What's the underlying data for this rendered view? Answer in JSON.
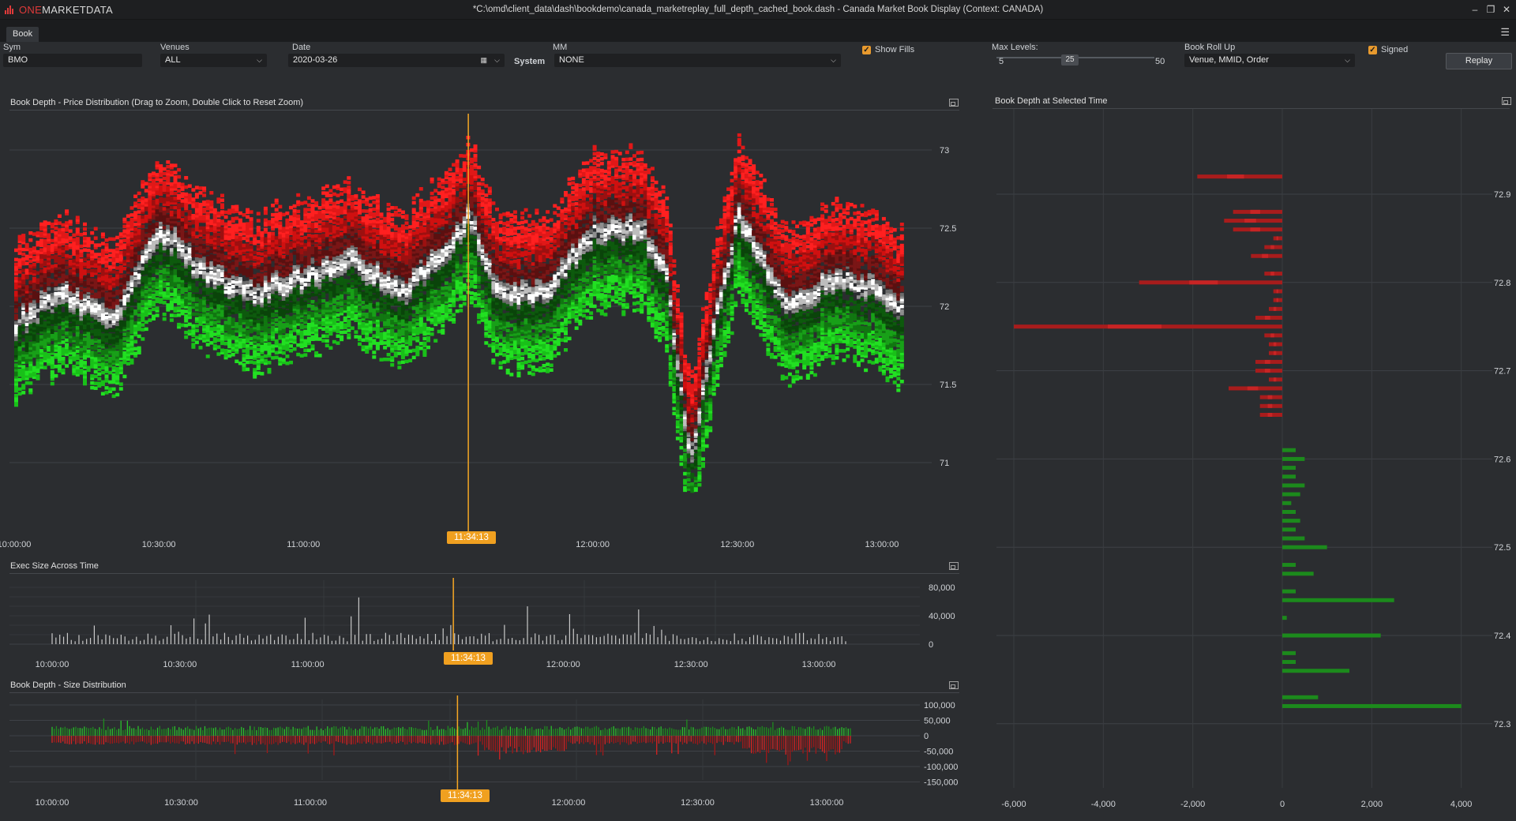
{
  "app": {
    "logo_one": "ONE",
    "logo_rest": "MARKETDATA",
    "window_title": "*C:\\omd\\client_data\\dash\\bookdemo\\canada_marketreplay_full_depth_cached_book.dash - Canada Market Book Display (Context: CANADA)",
    "tab": "Book"
  },
  "controls": {
    "sym_label": "Sym",
    "sym_value": "BMO",
    "venues_label": "Venues",
    "venues_value": "ALL",
    "date_label": "Date",
    "date_value": "2020-03-26",
    "mm_label": "MM",
    "system_label": "System",
    "mm_value": "NONE",
    "show_fills_label": "Show Fills",
    "max_levels_label": "Max Levels:",
    "max_levels_min": "5",
    "max_levels_value": "25",
    "max_levels_max": "50",
    "rollup_label": "Book Roll Up",
    "rollup_value": "Venue, MMID, Order",
    "signed_label": "Signed",
    "replay_label": "Replay"
  },
  "colors": {
    "ask": "#ff2020",
    "bid": "#22d422",
    "cursor": "#f5a623",
    "panel_bg": "#2b2d30"
  },
  "selected_time": "11:34:13",
  "panels": {
    "price_title": "Book Depth - Price Distribution (Drag to Zoom, Double Click to Reset Zoom)",
    "exec_title": "Exec Size Across Time",
    "size_title": "Book Depth - Size Distribution",
    "depth_title": "Book Depth at Selected Time"
  },
  "chart_data": [
    {
      "type": "heatmap",
      "title": "Book Depth - Price Distribution (Drag to Zoom, Double Click to Reset Zoom)",
      "x_ticks": [
        "10:00:00",
        "10:30:00",
        "11:00:00",
        "11:30:00",
        "12:00:00",
        "12:30:00",
        "13:00:00"
      ],
      "y_ticks": [
        "73",
        "72.5",
        "72",
        "71.5",
        "71"
      ],
      "ylim": [
        70.6,
        73.25
      ],
      "mid_price": {
        "x": [
          "10:00",
          "10:10",
          "10:20",
          "10:30",
          "10:40",
          "10:50",
          "11:00",
          "11:10",
          "11:20",
          "11:30",
          "11:34",
          "11:40",
          "11:50",
          "12:00",
          "12:10",
          "12:15",
          "12:20",
          "12:25",
          "12:30",
          "12:40",
          "12:50",
          "13:00",
          "13:10"
        ],
        "y": [
          71.9,
          72.1,
          71.9,
          72.5,
          72.2,
          72.1,
          72.2,
          72.3,
          72.1,
          72.4,
          72.6,
          72.1,
          72.1,
          72.5,
          72.5,
          72.2,
          71.0,
          71.9,
          72.6,
          72.0,
          72.2,
          72.1,
          71.8
        ]
      }
    },
    {
      "type": "bar",
      "title": "Exec Size Across Time",
      "x_ticks": [
        "10:00:00",
        "10:30:00",
        "11:00:00",
        "11:30:00",
        "12:00:00",
        "12:30:00",
        "13:00:00"
      ],
      "y_ticks": [
        "80,000",
        "40,000",
        "0"
      ],
      "ylim": [
        0,
        80000
      ]
    },
    {
      "type": "area",
      "title": "Book Depth - Size Distribution",
      "x_ticks": [
        "10:00:00",
        "10:30:00",
        "11:00:00",
        "11:30:00",
        "12:00:00",
        "12:30:00",
        "13:00:00"
      ],
      "y_ticks": [
        "100,000",
        "50,000",
        "0",
        "-50,000",
        "-100,000",
        "-150,000"
      ],
      "ylim": [
        -150000,
        100000
      ]
    },
    {
      "type": "bar",
      "title": "Book Depth at Selected Time",
      "x_ticks": [
        "-6,000",
        "-4,000",
        "-2,000",
        "0",
        "2,000",
        "4,000"
      ],
      "y_ticks": [
        "72.9",
        "72.8",
        "72.7",
        "72.6",
        "72.5",
        "72.4",
        "72.3"
      ],
      "xlim": [
        -6000,
        4000
      ],
      "ylim": [
        72.26,
        73.0
      ],
      "asks": [
        [
          72.92,
          -1900
        ],
        [
          72.88,
          -1100
        ],
        [
          72.87,
          -1300
        ],
        [
          72.86,
          -1100
        ],
        [
          72.85,
          -200
        ],
        [
          72.84,
          -400
        ],
        [
          72.83,
          -700
        ],
        [
          72.81,
          -400
        ],
        [
          72.8,
          -3200
        ],
        [
          72.79,
          -200
        ],
        [
          72.78,
          -200
        ],
        [
          72.77,
          -300
        ],
        [
          72.76,
          -600
        ],
        [
          72.75,
          -6000
        ],
        [
          72.74,
          -400
        ],
        [
          72.73,
          -300
        ],
        [
          72.72,
          -300
        ],
        [
          72.71,
          -600
        ],
        [
          72.7,
          -600
        ],
        [
          72.69,
          -300
        ],
        [
          72.68,
          -1200
        ],
        [
          72.67,
          -500
        ],
        [
          72.66,
          -500
        ],
        [
          72.65,
          -500
        ]
      ],
      "bids": [
        [
          72.61,
          300
        ],
        [
          72.6,
          500
        ],
        [
          72.59,
          300
        ],
        [
          72.58,
          300
        ],
        [
          72.57,
          500
        ],
        [
          72.56,
          400
        ],
        [
          72.55,
          200
        ],
        [
          72.54,
          300
        ],
        [
          72.53,
          400
        ],
        [
          72.52,
          300
        ],
        [
          72.51,
          500
        ],
        [
          72.5,
          1000
        ],
        [
          72.48,
          300
        ],
        [
          72.47,
          700
        ],
        [
          72.45,
          300
        ],
        [
          72.44,
          2500
        ],
        [
          72.42,
          100
        ],
        [
          72.4,
          2200
        ],
        [
          72.38,
          300
        ],
        [
          72.37,
          300
        ],
        [
          72.36,
          1500
        ],
        [
          72.33,
          800
        ],
        [
          72.32,
          4000
        ]
      ]
    }
  ]
}
